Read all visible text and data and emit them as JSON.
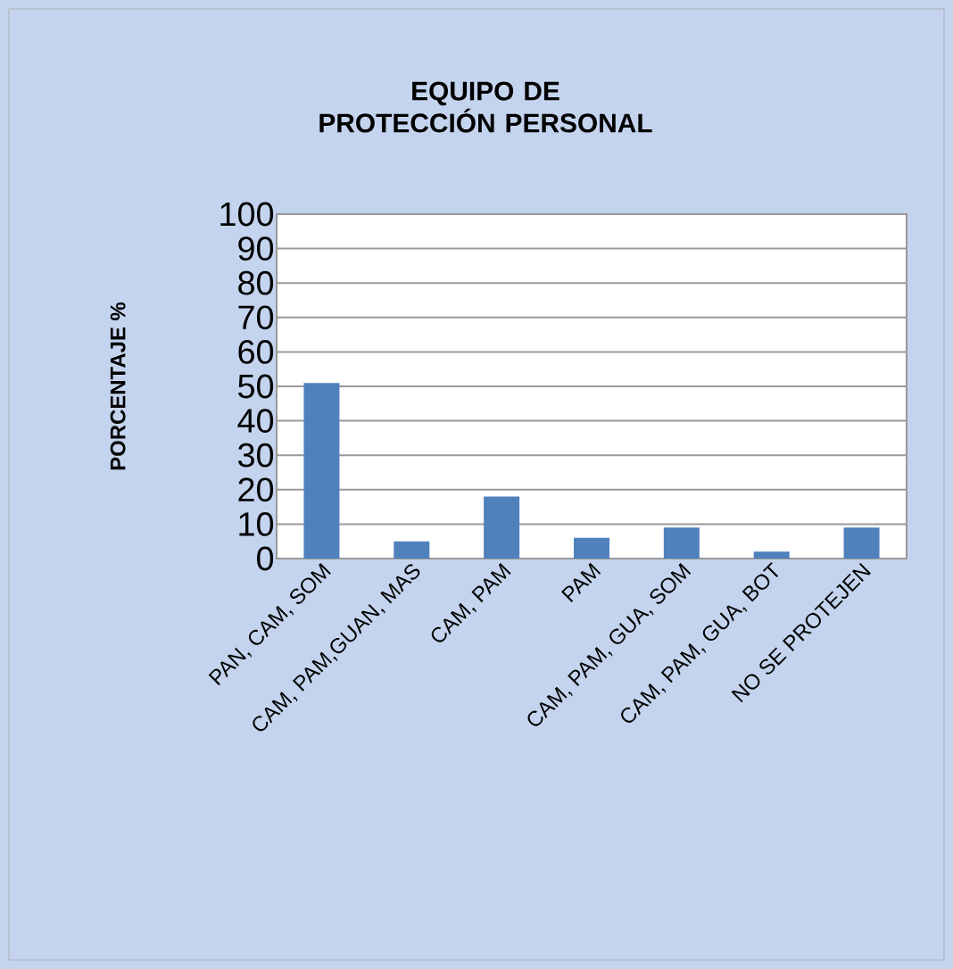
{
  "chart_data": {
    "type": "bar",
    "title": "EQUIPO DE PROTECCIÓN PERSONAL",
    "ylabel": "PORCENTAJE %",
    "categories": [
      "PAN, CAM, SOM",
      "CAM, PAM,GUAN, MAS",
      "CAM, PAM",
      "PAM",
      "CAM, PAM, GUA, SOM",
      "CAM, PAM, GUA, BOT",
      "NO SE PROTEJEN"
    ],
    "values": [
      51,
      5,
      18,
      6,
      9,
      2,
      9
    ],
    "color": "#4f81bd",
    "ylim": [
      0,
      100
    ],
    "yticks": [
      0,
      10,
      20,
      30,
      40,
      50,
      60,
      70,
      80,
      90,
      100
    ],
    "grid": "y"
  }
}
